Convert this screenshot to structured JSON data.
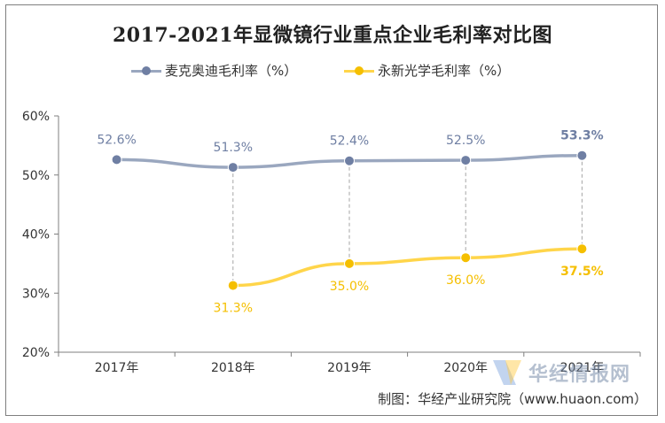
{
  "chart_data": {
    "type": "line",
    "title": "2017-2021年显微镜行业重点企业毛利率对比图",
    "categories": [
      "2017年",
      "2018年",
      "2019年",
      "2020年",
      "2021年"
    ],
    "y_ticks": [
      "20%",
      "30%",
      "40%",
      "50%",
      "60%"
    ],
    "ylim": [
      20,
      60
    ],
    "grid": false,
    "legend_position": "top",
    "series": [
      {
        "name": "麦克奥迪毛利率（%）",
        "color": "#9aa7bf",
        "marker_color": "#6f7fa3",
        "label_color": "#6f7fa3",
        "values": [
          52.6,
          51.3,
          52.4,
          52.5,
          53.3
        ],
        "labels": [
          "52.6%",
          "51.3%",
          "52.4%",
          "52.5%",
          "53.3%"
        ],
        "label_side": "above"
      },
      {
        "name": "永新光学毛利率（%）",
        "color": "#ffd54a",
        "marker_color": "#f5bf00",
        "label_color": "#f5bf00",
        "values": [
          null,
          31.3,
          35.0,
          36.0,
          37.5
        ],
        "labels": [
          null,
          "31.3%",
          "35.0%",
          "36.0%",
          "37.5%"
        ],
        "label_side": "below"
      }
    ],
    "dropline_color": "#a6a6a6"
  },
  "source": "制图：华经产业研究院（www.huaon.com）",
  "watermark": "华经情报网"
}
